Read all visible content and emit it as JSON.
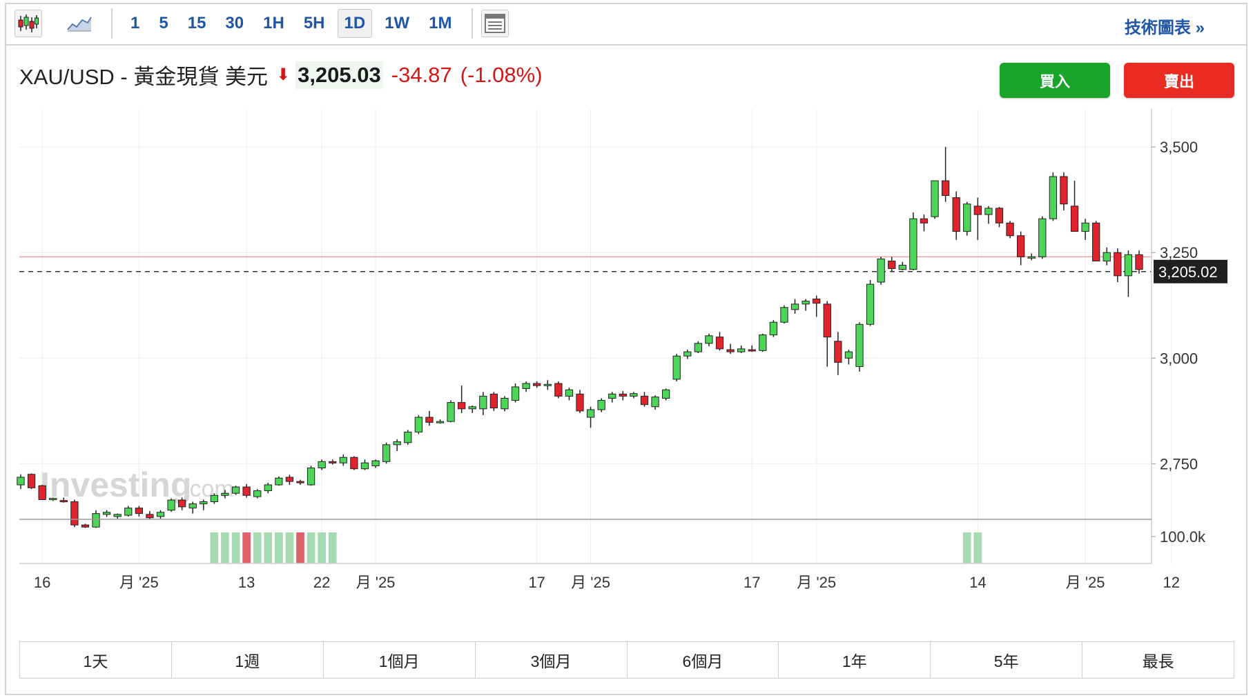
{
  "toolbar": {
    "chart_type_icons": [
      "candlestick-icon",
      "area-chart-icon"
    ],
    "timeframes": [
      "1",
      "5",
      "15",
      "30",
      "1H",
      "5H",
      "1D",
      "1W",
      "1M"
    ],
    "active_timeframe": "1D",
    "layout_icon": "layout-icon",
    "technical_link": "技術圖表 »"
  },
  "quote": {
    "symbol": "XAU/USD - 黃金現貨 美元",
    "direction_icon": "down-arrow-icon",
    "price": "3,205.03",
    "change": "-34.87",
    "change_pct": "(-1.08%)"
  },
  "buttons": {
    "buy": "買入",
    "sell": "賣出"
  },
  "watermark": {
    "brand": "Investing",
    "suffix": ".com"
  },
  "range_buttons": [
    "1天",
    "1週",
    "1個月",
    "3個月",
    "6個月",
    "1年",
    "5年",
    "最長"
  ],
  "colors": {
    "up": "#4fd45a",
    "down": "#e0232d",
    "link": "#1f56a8",
    "vol_up": "#a6dab1",
    "vol_down": "#e0616a"
  },
  "chart_data": {
    "type": "candlestick",
    "symbol": "XAU/USD",
    "y_ticks": [
      3500,
      3250,
      3000,
      2750
    ],
    "y_tick_labels": [
      "3,500",
      "3,250",
      "3,000",
      "2,750"
    ],
    "ylim": [
      2620,
      3590
    ],
    "current_price": 3205.02,
    "current_price_label": "3,205.02",
    "reference_line": 3240,
    "volume_axis_label": "100.0k",
    "x_labels": [
      "16",
      "月 '25",
      "13",
      "22",
      "月 '25",
      "17",
      "月 '25",
      "17",
      "月 '25",
      "14",
      "月 '25",
      "12"
    ],
    "x_label_index": [
      2,
      11,
      21,
      28,
      33,
      48,
      53,
      68,
      74,
      89,
      99,
      107
    ],
    "candles": [
      [
        2700,
        2725,
        2690,
        2718
      ],
      [
        2725,
        2727,
        2690,
        2693
      ],
      [
        2698,
        2700,
        2664,
        2665
      ],
      [
        2665,
        2670,
        2662,
        2668
      ],
      [
        2663,
        2670,
        2658,
        2661
      ],
      [
        2660,
        2665,
        2600,
        2605
      ],
      [
        2605,
        2608,
        2598,
        2600
      ],
      [
        2600,
        2640,
        2598,
        2632
      ],
      [
        2630,
        2640,
        2624,
        2635
      ],
      [
        2625,
        2632,
        2620,
        2630
      ],
      [
        2628,
        2650,
        2625,
        2645
      ],
      [
        2645,
        2650,
        2625,
        2632
      ],
      [
        2630,
        2638,
        2618,
        2622
      ],
      [
        2625,
        2640,
        2620,
        2635
      ],
      [
        2640,
        2668,
        2636,
        2664
      ],
      [
        2664,
        2670,
        2640,
        2648
      ],
      [
        2645,
        2660,
        2632,
        2655
      ],
      [
        2655,
        2665,
        2640,
        2660
      ],
      [
        2660,
        2680,
        2655,
        2675
      ],
      [
        2675,
        2688,
        2668,
        2680
      ],
      [
        2680,
        2698,
        2676,
        2695
      ],
      [
        2695,
        2702,
        2670,
        2675
      ],
      [
        2672,
        2690,
        2668,
        2686
      ],
      [
        2686,
        2705,
        2680,
        2700
      ],
      [
        2700,
        2720,
        2698,
        2716
      ],
      [
        2718,
        2724,
        2700,
        2708
      ],
      [
        2708,
        2712,
        2700,
        2705
      ],
      [
        2700,
        2745,
        2698,
        2740
      ],
      [
        2740,
        2760,
        2735,
        2755
      ],
      [
        2755,
        2760,
        2748,
        2752
      ],
      [
        2752,
        2772,
        2745,
        2765
      ],
      [
        2765,
        2768,
        2735,
        2738
      ],
      [
        2738,
        2760,
        2735,
        2752
      ],
      [
        2745,
        2760,
        2740,
        2757
      ],
      [
        2755,
        2800,
        2750,
        2795
      ],
      [
        2795,
        2808,
        2780,
        2802
      ],
      [
        2800,
        2830,
        2795,
        2825
      ],
      [
        2825,
        2865,
        2820,
        2860
      ],
      [
        2860,
        2875,
        2840,
        2848
      ],
      [
        2848,
        2855,
        2845,
        2850
      ],
      [
        2850,
        2900,
        2848,
        2895
      ],
      [
        2895,
        2935,
        2870,
        2880
      ],
      [
        2880,
        2888,
        2870,
        2885
      ],
      [
        2880,
        2920,
        2865,
        2910
      ],
      [
        2915,
        2920,
        2875,
        2882
      ],
      [
        2880,
        2910,
        2874,
        2905
      ],
      [
        2900,
        2940,
        2895,
        2932
      ],
      [
        2928,
        2945,
        2920,
        2940
      ],
      [
        2940,
        2945,
        2930,
        2935
      ],
      [
        2935,
        2948,
        2925,
        2938
      ],
      [
        2940,
        2945,
        2905,
        2910
      ],
      [
        2910,
        2930,
        2900,
        2925
      ],
      [
        2915,
        2925,
        2870,
        2875
      ],
      [
        2860,
        2885,
        2835,
        2878
      ],
      [
        2878,
        2905,
        2872,
        2900
      ],
      [
        2905,
        2920,
        2895,
        2915
      ],
      [
        2915,
        2922,
        2900,
        2910
      ],
      [
        2910,
        2920,
        2905,
        2916
      ],
      [
        2910,
        2920,
        2885,
        2890
      ],
      [
        2885,
        2912,
        2878,
        2908
      ],
      [
        2905,
        2928,
        2900,
        2925
      ],
      [
        2950,
        3010,
        2945,
        3005
      ],
      [
        3005,
        3020,
        2998,
        3015
      ],
      [
        3015,
        3040,
        3012,
        3035
      ],
      [
        3035,
        3058,
        3028,
        3053
      ],
      [
        3050,
        3062,
        3018,
        3022
      ],
      [
        3020,
        3034,
        3010,
        3015
      ],
      [
        3015,
        3030,
        3012,
        3022
      ],
      [
        3020,
        3030,
        3015,
        3018
      ],
      [
        3018,
        3058,
        3015,
        3055
      ],
      [
        3055,
        3090,
        3050,
        3085
      ],
      [
        3085,
        3125,
        3082,
        3120
      ],
      [
        3115,
        3140,
        3105,
        3128
      ],
      [
        3128,
        3140,
        3112,
        3135
      ],
      [
        3140,
        3148,
        3098,
        3130
      ],
      [
        3128,
        3135,
        2980,
        3050
      ],
      [
        3040,
        3062,
        2960,
        2990
      ],
      [
        3000,
        3020,
        2985,
        3015
      ],
      [
        2980,
        3085,
        2968,
        3080
      ],
      [
        3080,
        3185,
        3076,
        3175
      ],
      [
        3180,
        3240,
        3174,
        3235
      ],
      [
        3230,
        3240,
        3205,
        3212
      ],
      [
        3210,
        3228,
        3208,
        3220
      ],
      [
        3210,
        3345,
        3208,
        3330
      ],
      [
        3330,
        3340,
        3300,
        3320
      ],
      [
        3335,
        3420,
        3330,
        3420
      ],
      [
        3420,
        3500,
        3370,
        3385
      ],
      [
        3380,
        3395,
        3280,
        3300
      ],
      [
        3300,
        3370,
        3290,
        3365
      ],
      [
        3360,
        3380,
        3280,
        3340
      ],
      [
        3340,
        3360,
        3318,
        3355
      ],
      [
        3355,
        3358,
        3310,
        3320
      ],
      [
        3320,
        3325,
        3284,
        3290
      ],
      [
        3290,
        3300,
        3220,
        3240
      ],
      [
        3240,
        3248,
        3232,
        3240
      ],
      [
        3240,
        3336,
        3235,
        3330
      ],
      [
        3330,
        3440,
        3325,
        3430
      ],
      [
        3430,
        3440,
        3350,
        3365
      ],
      [
        3360,
        3420,
        3300,
        3300
      ],
      [
        3300,
        3330,
        3280,
        3320
      ],
      [
        3320,
        3325,
        3230,
        3230
      ],
      [
        3230,
        3262,
        3220,
        3250
      ],
      [
        3250,
        3260,
        3180,
        3195
      ],
      [
        3195,
        3255,
        3145,
        3245
      ],
      [
        3245,
        3255,
        3200,
        3210
      ]
    ],
    "volume": {
      "index": [
        18,
        19,
        20,
        21,
        22,
        23,
        24,
        25,
        26,
        27,
        28,
        29,
        88,
        89
      ],
      "down": [
        21,
        26
      ]
    }
  }
}
